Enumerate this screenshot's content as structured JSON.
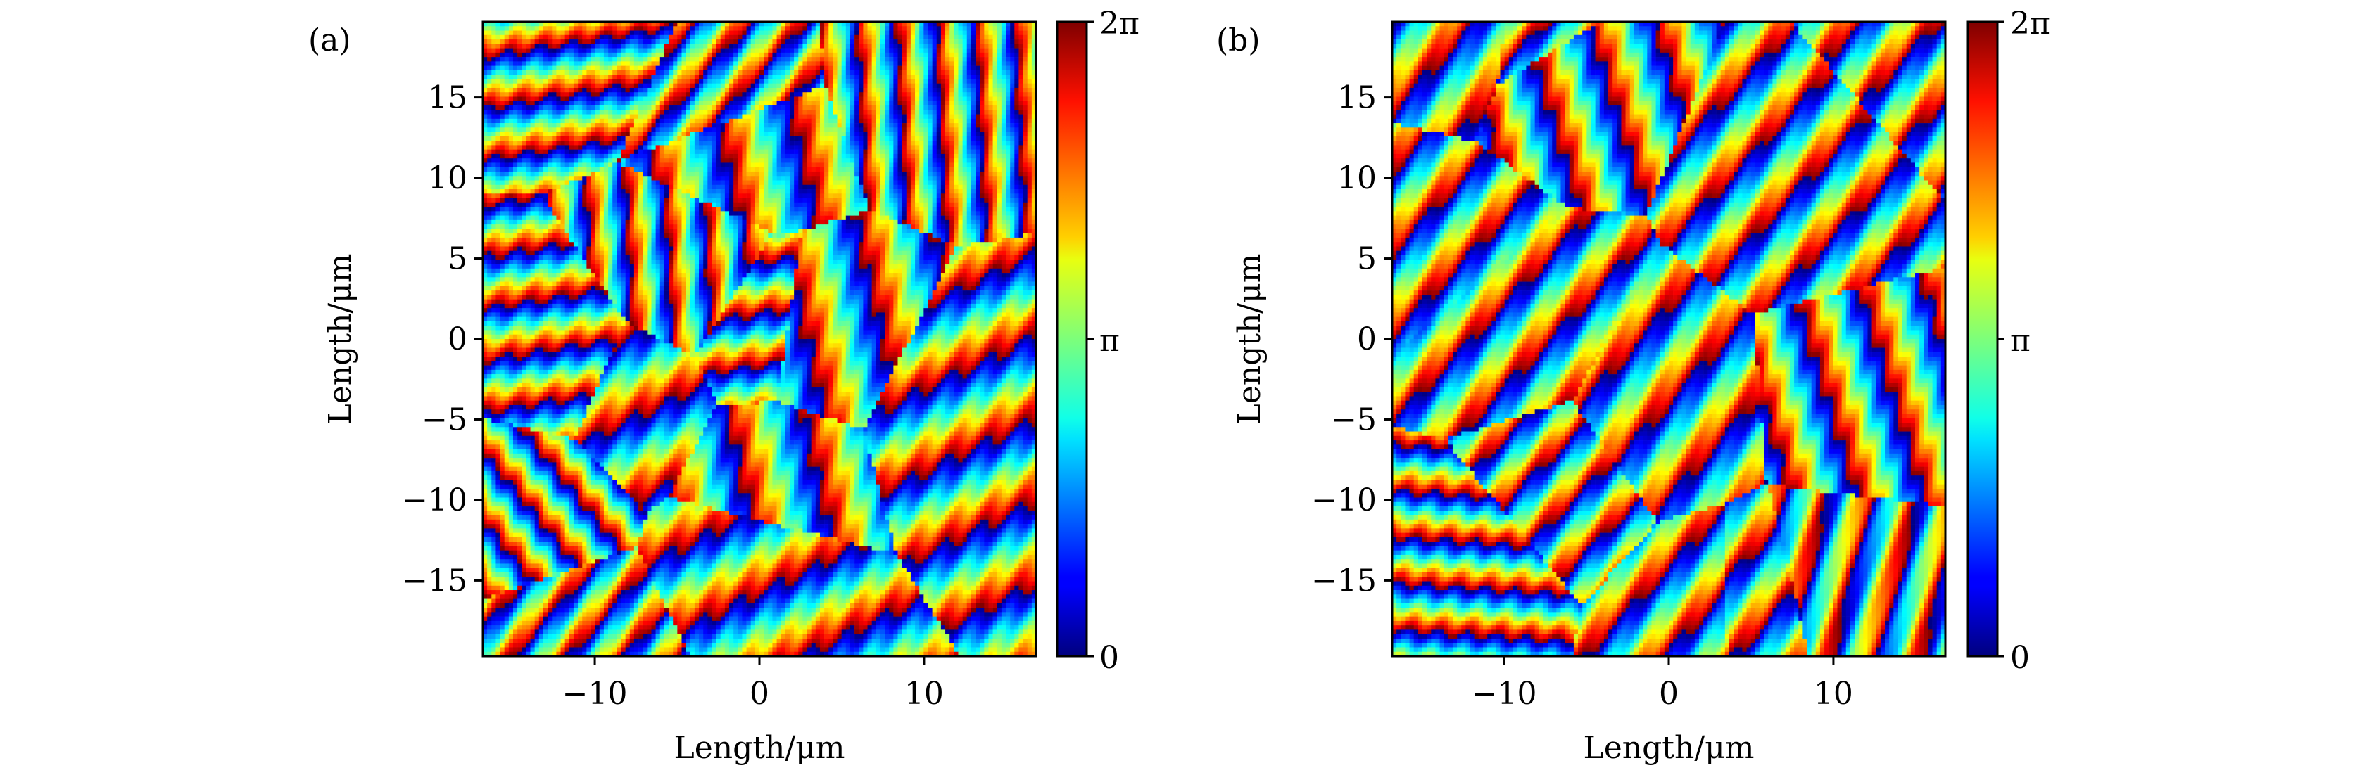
{
  "figure": {
    "panels": [
      {
        "label": "(a)"
      },
      {
        "label": "(b)"
      }
    ]
  },
  "chart_data": [
    {
      "type": "heatmap",
      "panel_label": "(a)",
      "title": "",
      "xlabel": "Length/μm",
      "ylabel": "Length/μm",
      "xlim": [
        -16.8,
        16.8
      ],
      "ylim": [
        -19.7,
        19.7
      ],
      "xticks": [
        -10,
        0,
        10
      ],
      "xtick_labels": [
        "−10",
        "0",
        "10"
      ],
      "yticks": [
        -15,
        -10,
        -5,
        0,
        5,
        10,
        15
      ],
      "ytick_labels": [
        "−15",
        "−10",
        "−5",
        "0",
        "5",
        "10",
        "15"
      ],
      "colorbar": {
        "colormap": "jet",
        "range": [
          "0",
          "2π"
        ],
        "tick_labels": [
          "0",
          "π",
          "2π"
        ]
      },
      "pattern": "random wrapped phase, dense diagonal stripe domains"
    },
    {
      "type": "heatmap",
      "panel_label": "(b)",
      "title": "",
      "xlabel": "Length/μm",
      "ylabel": "Length/μm",
      "xlim": [
        -16.8,
        16.8
      ],
      "ylim": [
        -19.7,
        19.7
      ],
      "xticks": [
        -10,
        0,
        10
      ],
      "xtick_labels": [
        "−10",
        "0",
        "10"
      ],
      "yticks": [
        -15,
        -10,
        -5,
        0,
        5,
        10,
        15
      ],
      "ytick_labels": [
        "−15",
        "−10",
        "−5",
        "0",
        "5",
        "10",
        "15"
      ],
      "colorbar": {
        "colormap": "jet",
        "range": [
          "0",
          "2π"
        ],
        "tick_labels": [
          "0",
          "π",
          "2π"
        ]
      },
      "pattern": "random wrapped phase, dense diagonal stripe domains"
    }
  ]
}
